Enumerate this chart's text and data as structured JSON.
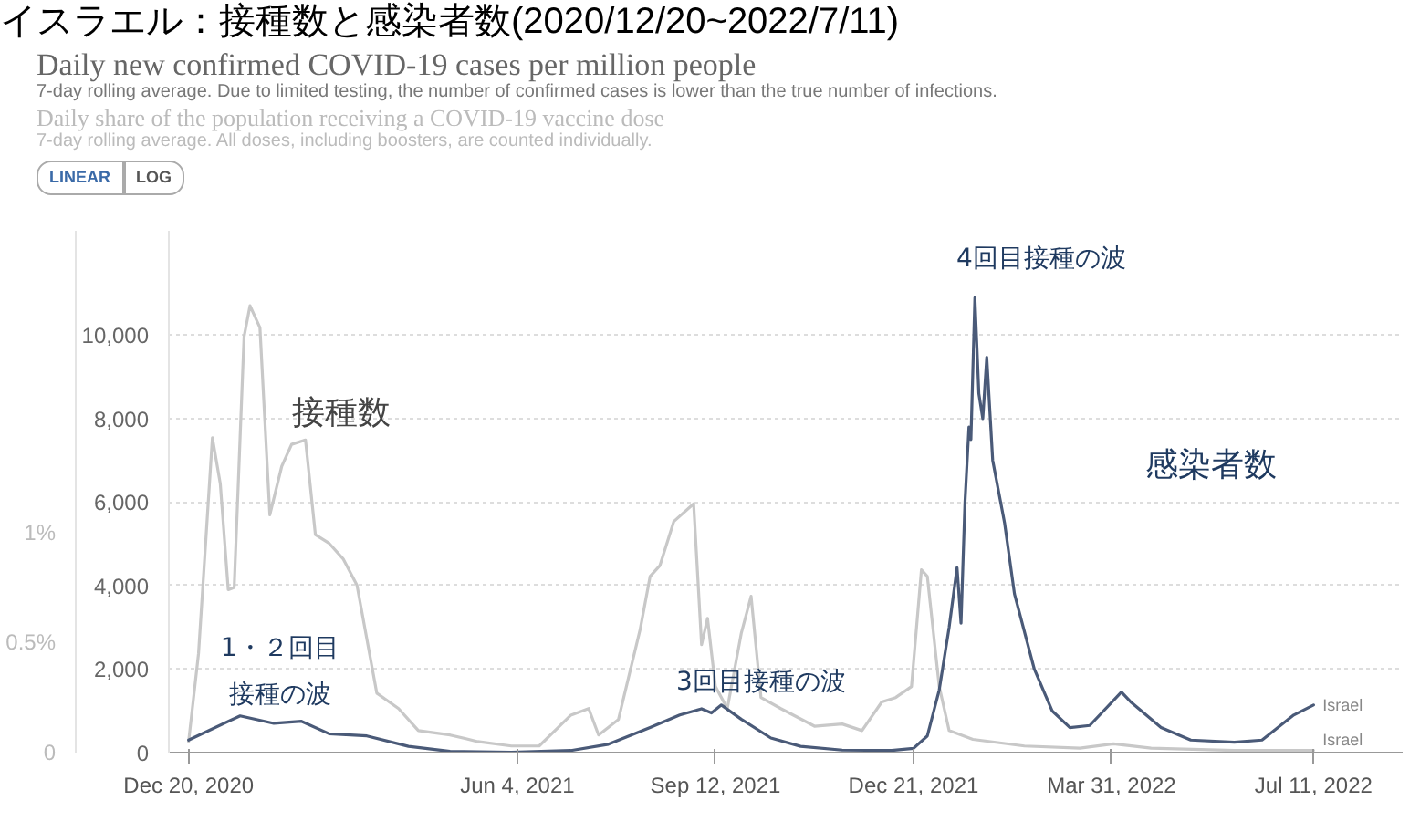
{
  "chart_data": {
    "type": "line",
    "title": "イスラエル：接種数と感染者数(2020/12/20~2022/7/11)",
    "subtitle": "Daily new confirmed COVID-19 cases per million people",
    "xlim": [
      "2020-12-10",
      "2022-08-25"
    ],
    "xticks": [
      {
        "value": "2020-12-20",
        "label": "Dec 20, 2020"
      },
      {
        "value": "2021-06-04",
        "label": "Jun 4, 2021"
      },
      {
        "value": "2021-09-12",
        "label": "Sep 12, 2021"
      },
      {
        "value": "2021-12-21",
        "label": "Dec 21, 2021"
      },
      {
        "value": "2022-03-31",
        "label": "Mar 31, 2022"
      },
      {
        "value": "2022-07-11",
        "label": "Jul 11, 2022"
      }
    ],
    "ylim": [
      0,
      12500
    ],
    "yticks": [
      0,
      {
        "value": 2000,
        "label": "2,000"
      },
      {
        "value": 4000,
        "label": "4,000"
      },
      {
        "value": 6000,
        "label": "6,000"
      },
      {
        "value": 8000,
        "label": "8,000"
      },
      {
        "value": 10000,
        "label": "10,000"
      }
    ],
    "y2lim": [
      0,
      2.37
    ],
    "y2ticks": [
      0,
      {
        "value": 0.5,
        "label": "0.5%"
      },
      {
        "value": 1,
        "label": "1%"
      }
    ],
    "grid": "y",
    "marker": "none",
    "line_style": "solid",
    "series": [
      {
        "name": "Israel",
        "color": "#c8c8c8",
        "axis": "y2",
        "x": [
          "2020-12-20",
          "2020-12-25",
          "2021-01-01",
          "2021-01-05",
          "2021-01-09",
          "2021-01-12",
          "2021-01-17",
          "2021-01-20",
          "2021-01-25",
          "2021-01-30",
          "2021-02-05",
          "2021-02-10",
          "2021-02-17",
          "2021-02-22",
          "2021-03-01",
          "2021-03-08",
          "2021-03-15",
          "2021-03-25",
          "2021-04-05",
          "2021-04-15",
          "2021-05-01",
          "2021-05-15",
          "2021-06-01",
          "2021-06-15",
          "2021-07-01",
          "2021-07-10",
          "2021-07-15",
          "2021-07-25",
          "2021-08-05",
          "2021-08-10",
          "2021-08-15",
          "2021-08-22",
          "2021-09-01",
          "2021-09-05",
          "2021-09-08",
          "2021-09-12",
          "2021-09-18",
          "2021-09-25",
          "2021-09-30",
          "2021-10-05",
          "2021-10-15",
          "2021-11-01",
          "2021-11-15",
          "2021-11-25",
          "2021-12-05",
          "2021-12-12",
          "2021-12-20",
          "2021-12-25",
          "2021-12-28",
          "2022-01-03",
          "2022-01-08",
          "2022-01-20",
          "2022-02-15",
          "2022-03-15",
          "2022-04-01",
          "2022-04-20",
          "2022-06-01",
          "2022-07-11"
        ],
        "values": [
          0.05,
          0.45,
          1.43,
          1.22,
          0.74,
          0.75,
          1.89,
          2.03,
          1.93,
          1.08,
          1.3,
          1.4,
          1.42,
          0.99,
          0.95,
          0.88,
          0.76,
          0.27,
          0.2,
          0.1,
          0.08,
          0.05,
          0.03,
          0.03,
          0.17,
          0.2,
          0.08,
          0.15,
          0.56,
          0.8,
          0.85,
          1.05,
          1.13,
          0.49,
          0.61,
          0.3,
          0.2,
          0.54,
          0.71,
          0.25,
          0.2,
          0.12,
          0.13,
          0.1,
          0.23,
          0.25,
          0.3,
          0.83,
          0.8,
          0.3,
          0.1,
          0.06,
          0.03,
          0.02,
          0.04,
          0.02,
          0.01,
          0.01
        ]
      },
      {
        "name": "Israel",
        "color": "#4a5a78",
        "x": [
          "2020-12-20",
          "2021-01-15",
          "2021-02-01",
          "2021-02-15",
          "2021-03-01",
          "2021-03-20",
          "2021-04-10",
          "2021-05-01",
          "2021-06-01",
          "2021-07-01",
          "2021-07-20",
          "2021-08-10",
          "2021-08-25",
          "2021-09-05",
          "2021-09-10",
          "2021-09-15",
          "2021-09-25",
          "2021-10-10",
          "2021-10-25",
          "2021-11-15",
          "2021-12-10",
          "2021-12-21",
          "2021-12-28",
          "2022-01-03",
          "2022-01-08",
          "2022-01-12",
          "2022-01-14",
          "2022-01-16",
          "2022-01-18",
          "2022-01-19",
          "2022-01-21",
          "2022-01-23",
          "2022-01-25",
          "2022-01-27",
          "2022-01-30",
          "2022-02-05",
          "2022-02-10",
          "2022-02-20",
          "2022-03-01",
          "2022-03-10",
          "2022-03-20",
          "2022-04-05",
          "2022-04-10",
          "2022-04-25",
          "2022-05-10",
          "2022-06-01",
          "2022-06-15",
          "2022-07-01",
          "2022-07-11"
        ],
        "values": [
          300,
          880,
          700,
          750,
          450,
          400,
          150,
          30,
          10,
          50,
          200,
          600,
          900,
          1050,
          950,
          1140,
          800,
          350,
          150,
          60,
          50,
          100,
          400,
          1500,
          3000,
          4430,
          3100,
          6000,
          7800,
          7500,
          10900,
          8600,
          8000,
          9470,
          7000,
          5500,
          3800,
          2000,
          1000,
          600,
          650,
          1450,
          1200,
          600,
          300,
          250,
          300,
          900,
          1140
        ]
      }
    ],
    "annotations": [
      "Daily share of the population receiving a COVID-19 vaccine dose",
      "7-day rolling average. Due to limited testing, the number of confirmed cases is lower than the true number of infections.",
      "7-day rolling average. All doses, including boosters, are counted individually.",
      "LINEAR",
      "LOG",
      "接種数",
      "1・２回目",
      "接種の波",
      "3回目接種の波",
      "4回目接種の波",
      "感染者数"
    ]
  }
}
